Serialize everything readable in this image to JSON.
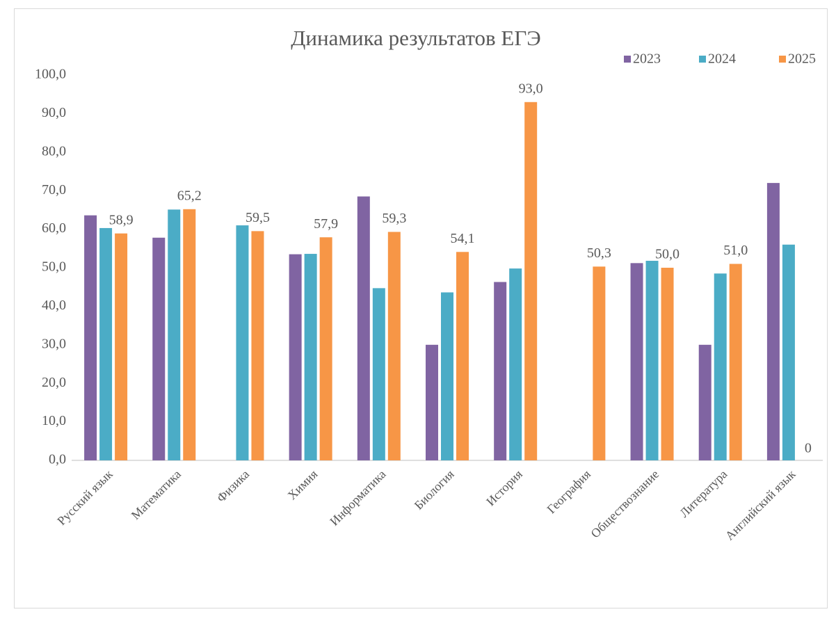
{
  "chart_data": {
    "type": "bar",
    "title": "Динамика результатов ЕГЭ",
    "categories": [
      "Русский язык",
      "Математика",
      "Физика",
      "Химия",
      "Информатика",
      "Биология",
      "История",
      "География",
      "Обществознание",
      "Литература",
      "Английский язык"
    ],
    "series": [
      {
        "name": "2023",
        "color": "#8064a2",
        "values": [
          63.6,
          57.8,
          null,
          53.5,
          68.5,
          30.0,
          46.3,
          null,
          51.2,
          30.0,
          72.0
        ]
      },
      {
        "name": "2024",
        "color": "#4bacc6",
        "values": [
          60.3,
          65.1,
          61.0,
          53.6,
          44.7,
          43.6,
          49.8,
          null,
          51.8,
          48.5,
          56.0
        ]
      },
      {
        "name": "2025",
        "color": "#f79646",
        "values": [
          58.9,
          65.2,
          59.5,
          57.9,
          59.3,
          54.1,
          93.0,
          50.3,
          50.0,
          51.0,
          0
        ],
        "value_labels": [
          "58,9",
          "65,2",
          "59,5",
          "57,9",
          "59,3",
          "54,1",
          "93,0",
          "50,3",
          "50,0",
          "51,0",
          "0"
        ]
      }
    ],
    "ylim": [
      0,
      100
    ],
    "yticks": [
      {
        "value": 0,
        "label": "0,0"
      },
      {
        "value": 10,
        "label": "10,0"
      },
      {
        "value": 20,
        "label": "20,0"
      },
      {
        "value": 30,
        "label": "30,0"
      },
      {
        "value": 40,
        "label": "40,0"
      },
      {
        "value": 50,
        "label": "50,0"
      },
      {
        "value": 60,
        "label": "60,0"
      },
      {
        "value": 70,
        "label": "70,0"
      },
      {
        "value": 80,
        "label": "80,0"
      },
      {
        "value": 90,
        "label": "90,0"
      },
      {
        "value": 100,
        "label": "100,0"
      }
    ],
    "grid": false,
    "legend": "top-right"
  }
}
